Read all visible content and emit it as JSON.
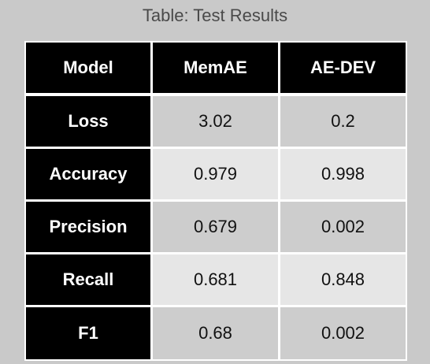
{
  "title": "Table: Test Results",
  "table": {
    "headers": [
      "Model",
      "MemAE",
      "AE-DEV"
    ],
    "rows": [
      {
        "label": "Loss",
        "values": [
          "3.02",
          "0.2"
        ]
      },
      {
        "label": "Accuracy",
        "values": [
          "0.979",
          "0.998"
        ]
      },
      {
        "label": "Precision",
        "values": [
          "0.679",
          "0.002"
        ]
      },
      {
        "label": "Recall",
        "values": [
          "0.681",
          "0.848"
        ]
      },
      {
        "label": "F1",
        "values": [
          "0.68",
          "0.002"
        ]
      }
    ]
  },
  "chart_data": {
    "type": "table",
    "title": "Table: Test Results",
    "columns": [
      "Model",
      "MemAE",
      "AE-DEV"
    ],
    "rows": [
      [
        "Loss",
        3.02,
        0.2
      ],
      [
        "Accuracy",
        0.979,
        0.998
      ],
      [
        "Precision",
        0.679,
        0.002
      ],
      [
        "Recall",
        0.681,
        0.848
      ],
      [
        "F1",
        0.68,
        0.002
      ]
    ]
  },
  "colors": {
    "background": "#c9c9c9",
    "header_bg": "#000000",
    "header_text": "#ffffff",
    "cell_dark": "#cdcdcd",
    "cell_light": "#e6e6e6",
    "grid": "#ffffff"
  }
}
